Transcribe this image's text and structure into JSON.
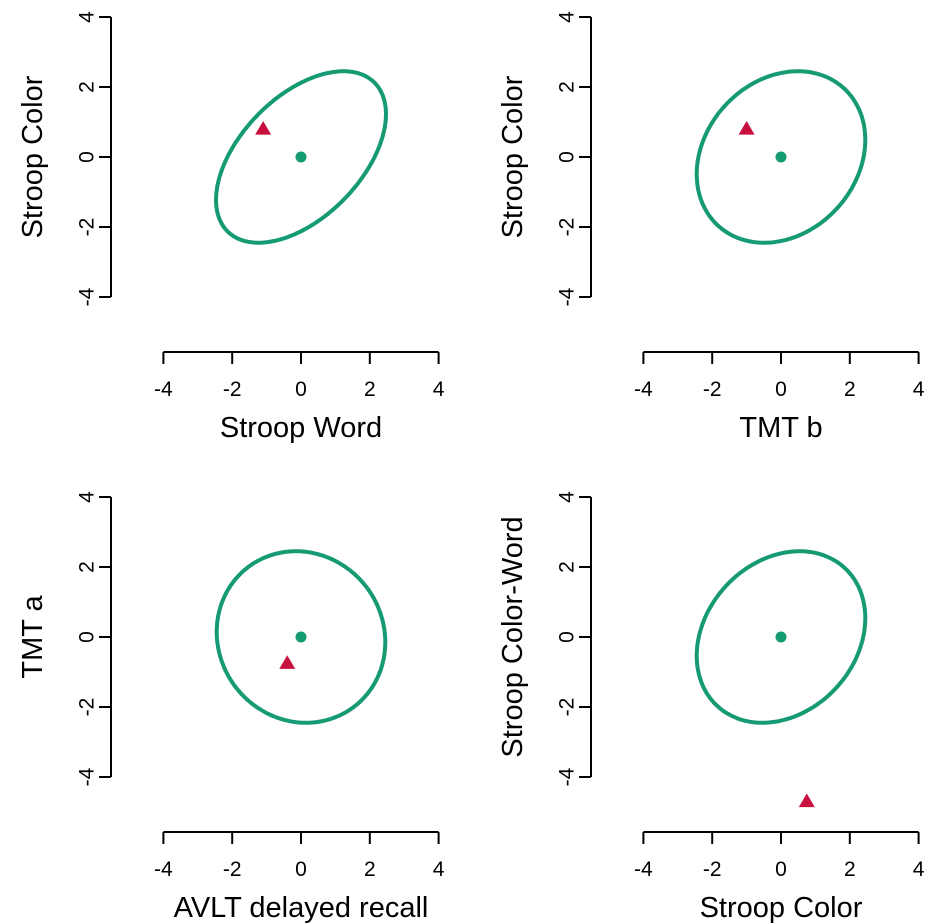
{
  "colors": {
    "ellipse": "#159A73",
    "center": "#159A73",
    "point": "#C8103F",
    "axis": "#000000"
  },
  "chart_data": [
    {
      "type": "scatter",
      "xlabel": "Stroop Word",
      "ylabel": "Stroop Color",
      "xlim": [
        -4,
        4
      ],
      "ylim": [
        -4,
        4
      ],
      "xticks": [
        -4,
        -2,
        0,
        2,
        4
      ],
      "yticks": [
        -4,
        -2,
        0,
        2,
        4
      ],
      "grid": false,
      "center": {
        "x": 0,
        "y": 0
      },
      "point": {
        "x": -1.1,
        "y": 0.8
      },
      "ellipse": {
        "x_half_range": 2.47,
        "y_half_range": 2.45,
        "correlation": 0.5
      }
    },
    {
      "type": "scatter",
      "xlabel": "TMT b",
      "ylabel": "Stroop Color",
      "xlim": [
        -4,
        4
      ],
      "ylim": [
        -4,
        4
      ],
      "xticks": [
        -4,
        -2,
        0,
        2,
        4
      ],
      "yticks": [
        -4,
        -2,
        0,
        2,
        4
      ],
      "grid": false,
      "center": {
        "x": 0,
        "y": 0
      },
      "point": {
        "x": -1.0,
        "y": 0.8
      },
      "ellipse": {
        "x_half_range": 2.45,
        "y_half_range": 2.45,
        "correlation": 0.2
      }
    },
    {
      "type": "scatter",
      "xlabel": "AVLT delayed recall",
      "ylabel": "TMT a",
      "xlim": [
        -4,
        4
      ],
      "ylim": [
        -4,
        4
      ],
      "xticks": [
        -4,
        -2,
        0,
        2,
        4
      ],
      "yticks": [
        -4,
        -2,
        0,
        2,
        4
      ],
      "grid": false,
      "center": {
        "x": 0,
        "y": 0
      },
      "point": {
        "x": -0.4,
        "y": -0.75
      },
      "ellipse": {
        "x_half_range": 2.45,
        "y_half_range": 2.45,
        "correlation": -0.06
      }
    },
    {
      "type": "scatter",
      "xlabel": "Stroop Color",
      "ylabel": "Stroop Color-Word",
      "xlim": [
        -4,
        4
      ],
      "ylim": [
        -4,
        4
      ],
      "xticks": [
        -4,
        -2,
        0,
        2,
        4
      ],
      "yticks": [
        -4,
        -2,
        0,
        2,
        4
      ],
      "grid": false,
      "center": {
        "x": 0,
        "y": 0
      },
      "point": {
        "x": 0.75,
        "y": -4.7
      },
      "ellipse": {
        "x_half_range": 2.45,
        "y_half_range": 2.45,
        "correlation": 0.22
      }
    }
  ]
}
